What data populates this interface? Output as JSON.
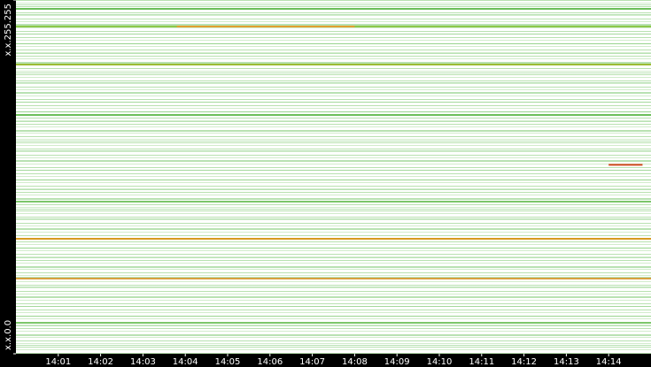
{
  "chart_data": {
    "type": "strip",
    "xlim": [
      0,
      15
    ],
    "xticks": [
      {
        "value": 1,
        "label": "14:01"
      },
      {
        "value": 2,
        "label": "14:02"
      },
      {
        "value": 3,
        "label": "14:03"
      },
      {
        "value": 4,
        "label": "14:04"
      },
      {
        "value": 5,
        "label": "14:05"
      },
      {
        "value": 6,
        "label": "14:06"
      },
      {
        "value": 7,
        "label": "14:07"
      },
      {
        "value": 8,
        "label": "14:08"
      },
      {
        "value": 9,
        "label": "14:09"
      },
      {
        "value": 10,
        "label": "14:10"
      },
      {
        "value": 11,
        "label": "14:11"
      },
      {
        "value": 12,
        "label": "14:12"
      },
      {
        "value": 13,
        "label": "14:13"
      },
      {
        "value": 14,
        "label": "14:14"
      }
    ],
    "ylim": [
      0,
      65535
    ],
    "yticks": [
      {
        "value": 0,
        "label": "x.x.0.0"
      },
      {
        "value": 65535,
        "label": "x.x.255.255"
      }
    ],
    "lines": [
      {
        "address": 63897,
        "start": 0,
        "end": 15,
        "color": "#6cbf5a"
      },
      {
        "address": 60620,
        "start": 0,
        "end": 15,
        "color": "#8cc84a"
      },
      {
        "address": 60620,
        "start": 3.8,
        "end": 8,
        "color": "#e0a030"
      },
      {
        "address": 53575,
        "start": 0,
        "end": 15,
        "color": "#9cbc34"
      },
      {
        "address": 44236,
        "start": 0,
        "end": 15,
        "color": "#6cbf5a"
      },
      {
        "address": 35000,
        "start": 14,
        "end": 14.8,
        "color": "#d04a20"
      },
      {
        "address": 28180,
        "start": 0,
        "end": 15,
        "color": "#7cc66a"
      },
      {
        "address": 21299,
        "start": 0,
        "end": 15,
        "color": "#d89a20"
      },
      {
        "address": 13926,
        "start": 0,
        "end": 15,
        "color": "#d8a040"
      },
      {
        "address": 5734,
        "start": 0,
        "end": 15,
        "color": "#7cc66a"
      }
    ]
  }
}
